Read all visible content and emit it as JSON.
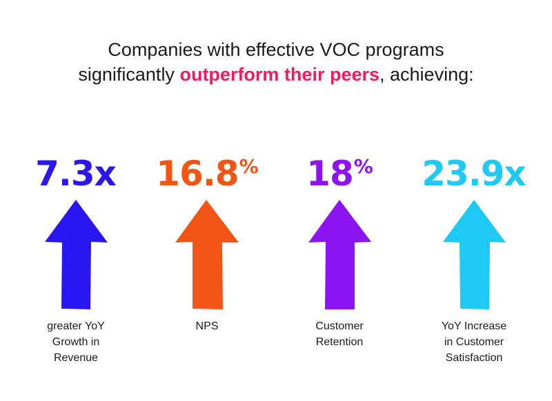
{
  "headline": {
    "line1": "Companies with effective VOC programs",
    "line2_prefix": "significantly ",
    "line2_accent": "outperform their peers",
    "line2_suffix": ", achieving:"
  },
  "colors": {
    "accent": "#ee1d5f",
    "text": "#1a1a1a"
  },
  "stats": [
    {
      "value": "7.3x",
      "suffix": "",
      "color": "#2a16f0",
      "icon": "up-arrow-icon",
      "caption": [
        "greater YoY",
        "Growth in",
        "Revenue"
      ]
    },
    {
      "value": "16.8",
      "suffix": "%",
      "color": "#f25413",
      "icon": "up-arrow-icon",
      "caption": [
        "NPS"
      ]
    },
    {
      "value": "18",
      "suffix": "%",
      "color": "#8b14f0",
      "icon": "up-arrow-icon",
      "caption": [
        "Customer",
        "Retention"
      ]
    },
    {
      "value": "23.9x",
      "suffix": "",
      "color": "#1ec9f4",
      "icon": "up-arrow-icon",
      "caption": [
        "YoY Increase",
        "in Customer",
        "Satisfaction"
      ]
    }
  ]
}
